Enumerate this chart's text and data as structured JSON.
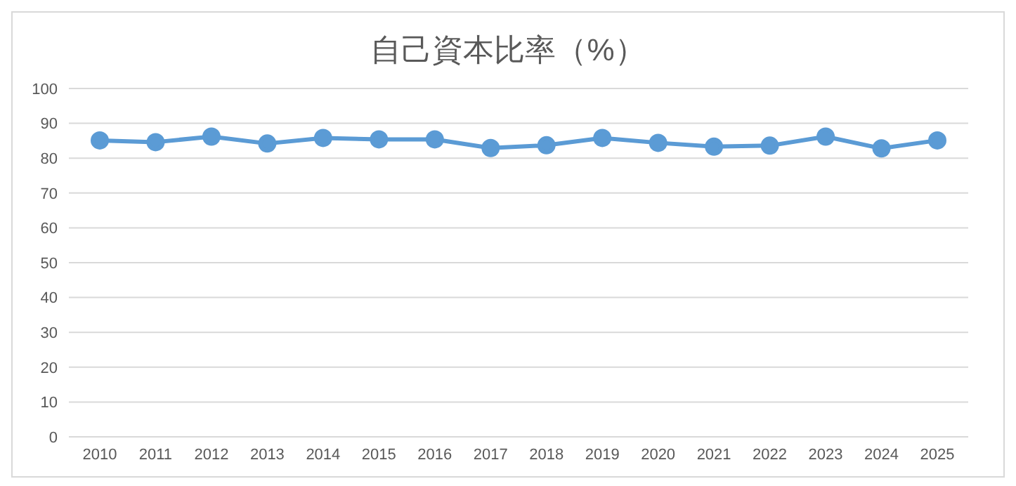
{
  "chart_data": {
    "type": "line",
    "title": "自己資本比率（%）",
    "categories": [
      "2010",
      "2011",
      "2012",
      "2013",
      "2014",
      "2015",
      "2016",
      "2017",
      "2018",
      "2019",
      "2020",
      "2021",
      "2022",
      "2023",
      "2024",
      "2025"
    ],
    "series": [
      {
        "color": "#5b9bd5",
        "values": [
          85.1,
          84.6,
          86.2,
          84.2,
          85.8,
          85.4,
          85.4,
          82.9,
          83.7,
          85.8,
          84.4,
          83.3,
          83.6,
          86.2,
          82.8,
          85.1
        ]
      }
    ],
    "ylim": [
      0,
      100
    ],
    "yticks": [
      0,
      10,
      20,
      30,
      40,
      50,
      60,
      70,
      80,
      90,
      100
    ],
    "grid": "y",
    "marker": "circle"
  }
}
